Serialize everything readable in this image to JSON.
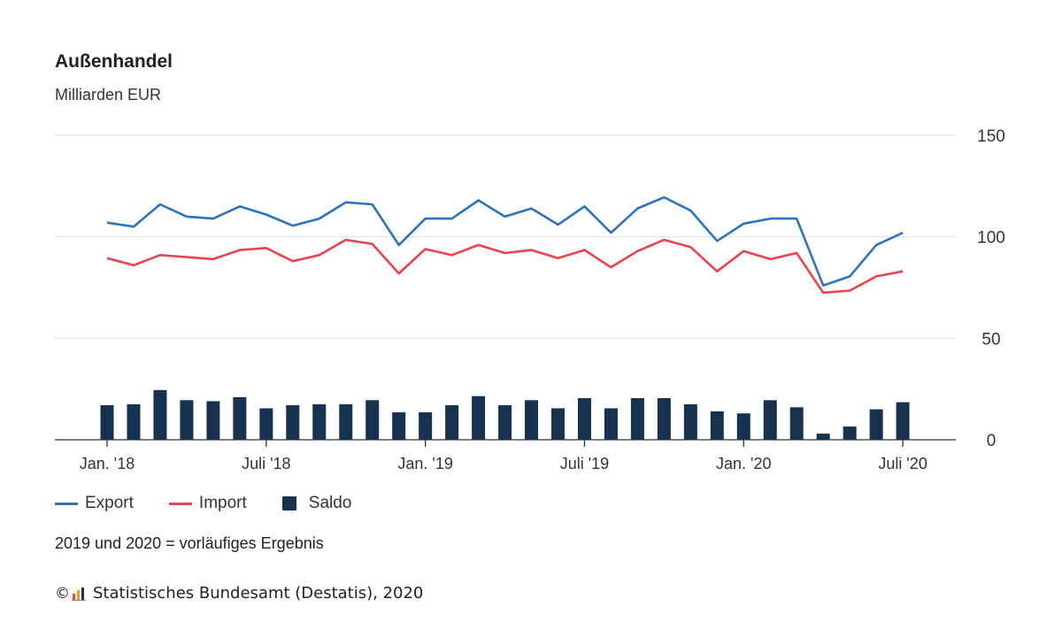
{
  "chart_data": {
    "type": "line+bar",
    "title": "Außenhandel",
    "subtitle": "Milliarden EUR",
    "ylim": [
      0,
      150
    ],
    "yticks": [
      0,
      50,
      100,
      150
    ],
    "grid": true,
    "x_tick_labels": [
      {
        "index": 0,
        "label": "Jan. '18"
      },
      {
        "index": 6,
        "label": "Juli '18"
      },
      {
        "index": 12,
        "label": "Jan. '19"
      },
      {
        "index": 18,
        "label": "Juli '19"
      },
      {
        "index": 24,
        "label": "Jan. '20"
      },
      {
        "index": 30,
        "label": "Juli '20"
      }
    ],
    "series": [
      {
        "name": "Export",
        "type": "line",
        "color": "#2e72b8",
        "values": [
          107,
          105,
          116,
          110,
          109,
          115,
          111,
          105.5,
          109,
          117,
          116,
          96,
          109,
          109,
          118,
          110,
          114,
          106,
          115,
          102,
          114,
          119.5,
          113,
          98,
          106.5,
          109,
          109,
          76,
          80.5,
          96,
          102
        ]
      },
      {
        "name": "Import",
        "type": "line",
        "color": "#e8434e",
        "values": [
          89.5,
          86,
          91,
          90,
          89,
          93.5,
          94.5,
          88,
          91,
          98.5,
          96.5,
          82,
          94,
          91,
          96,
          92,
          93.5,
          89.5,
          93.5,
          85,
          93,
          98.5,
          95,
          83,
          93,
          89,
          92,
          72.5,
          73.5,
          80.5,
          83
        ]
      },
      {
        "name": "Saldo",
        "type": "bar",
        "color": "#17324f",
        "values": [
          17,
          17.5,
          24.5,
          19.5,
          19,
          21,
          15.5,
          17,
          17.5,
          17.5,
          19.5,
          13.5,
          13.5,
          17,
          21.5,
          17,
          19.5,
          15.5,
          20.5,
          15.5,
          20.5,
          20.5,
          17.5,
          14,
          13,
          19.5,
          16,
          3,
          6.5,
          15,
          18.5
        ]
      }
    ]
  },
  "legend": {
    "export_label": "Export",
    "import_label": "Import",
    "saldo_label": "Saldo"
  },
  "note": "2019 und 2020 = vorläufiges Ergebnis",
  "source": {
    "copyright_symbol": "©",
    "text": "Statistisches Bundesamt (Destatis), 2020"
  },
  "colors": {
    "export": "#2e72b8",
    "import": "#e8434e",
    "saldo": "#17324f",
    "grid": "#dddddd",
    "axis": "#333333"
  }
}
